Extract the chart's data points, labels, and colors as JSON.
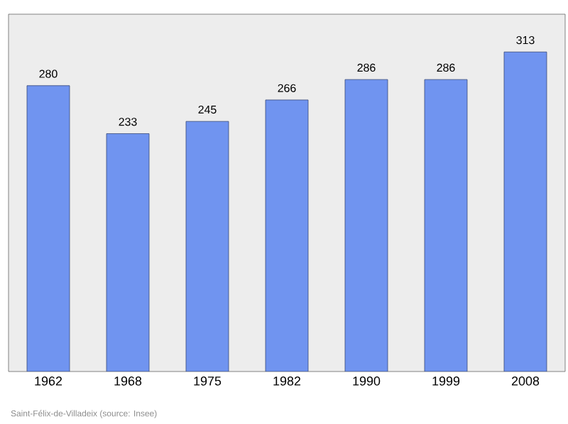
{
  "chart_data": {
    "type": "bar",
    "categories": [
      "1962",
      "1968",
      "1975",
      "1982",
      "1990",
      "1999",
      "2008"
    ],
    "values": [
      280,
      233,
      245,
      266,
      286,
      286,
      313
    ],
    "color": "#7094f0",
    "ylim": [
      0,
      350
    ],
    "data_labels": true,
    "annotations": [
      "Saint-Félix-de-Villadeix    (source: Insee)"
    ]
  }
}
